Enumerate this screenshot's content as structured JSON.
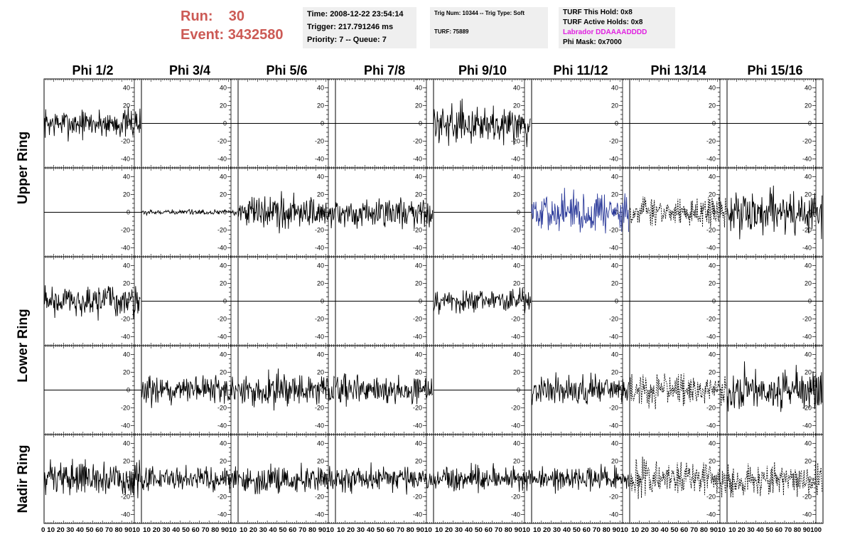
{
  "header": {
    "run_label": "Run:",
    "run_value": "30",
    "event_label": "Event:",
    "event_value": "3432580",
    "time": "Time: 2008-12-22 23:54:14",
    "trigger": "Trigger: 217.791246 ms",
    "priority": "Priority: 7 -- Queue: 7",
    "trig_num": "Trig Num: 10344 -- Trig Type: Soft",
    "turf": "TURF: 75889",
    "turf_hold": "TURF This Hold: 0x8",
    "turf_active": "TURF Active Holds: 0x8",
    "labrador": "Labrador DDAAAADDDD",
    "phi_mask": "Phi Mask: 0x7000",
    "labrador_color": "#e020e0",
    "run_color": "#cc5a55"
  },
  "chart_data": {
    "type": "line",
    "columns": [
      "Phi 1/2",
      "Phi 3/4",
      "Phi 5/6",
      "Phi 7/8",
      "Phi 9/10",
      "Phi 11/12",
      "Phi 13/14",
      "Phi 15/16"
    ],
    "row_labels": [
      "Upper Ring",
      "Lower Ring",
      "Nadir Ring"
    ],
    "xlim": [
      0,
      100
    ],
    "ylim": [
      -50,
      50
    ],
    "x_ticks": [
      0,
      10,
      20,
      30,
      40,
      50,
      60,
      70,
      80,
      90,
      100
    ],
    "y_ticks": [
      -40,
      -20,
      0,
      20,
      40
    ],
    "x_tick_labels": [
      "0 10 20 30 40 50 60 70 80 9010",
      "10 20 30 40 50 60 70 80 9010",
      "10 20 30 40 50 60 70 80 9010",
      "10 20 30 40 50 60 70 80 9010",
      "10 20 30 40 50 60 70 80 9010",
      "10 20 30 40 50 60 70 80 9010",
      "10 20 30 40 50 60 70 80 9010",
      "10 20 30 40 50 60 70 80 90100"
    ],
    "colors": {
      "normal": "#000000",
      "highlight": "#2b3a9a"
    },
    "panels": [
      [
        {
          "amp": 24,
          "style": "solid"
        },
        {
          "amp": 0,
          "style": "flat"
        },
        {
          "amp": 0,
          "style": "flat"
        },
        {
          "amp": 0,
          "style": "flat"
        },
        {
          "amp": 30,
          "style": "solid"
        },
        {
          "amp": 0,
          "style": "flat"
        },
        {
          "amp": 0,
          "style": "flat"
        },
        {
          "amp": 0,
          "style": "flat"
        }
      ],
      [
        {
          "amp": 0,
          "style": "flat"
        },
        {
          "amp": 4,
          "style": "solid"
        },
        {
          "amp": 28,
          "style": "solid"
        },
        {
          "amp": 24,
          "style": "solid"
        },
        {
          "amp": 0,
          "style": "flat"
        },
        {
          "amp": 32,
          "style": "blue"
        },
        {
          "amp": 26,
          "style": "dotted"
        },
        {
          "amp": 36,
          "style": "solid"
        }
      ],
      [
        {
          "amp": 26,
          "style": "solid"
        },
        {
          "amp": 0,
          "style": "flat"
        },
        {
          "amp": 0,
          "style": "flat"
        },
        {
          "amp": 0,
          "style": "flat"
        },
        {
          "amp": 20,
          "style": "solid"
        },
        {
          "amp": 0,
          "style": "flat"
        },
        {
          "amp": 0,
          "style": "flat"
        },
        {
          "amp": 0,
          "style": "flat"
        }
      ],
      [
        {
          "amp": 0,
          "style": "flat"
        },
        {
          "amp": 24,
          "style": "solid"
        },
        {
          "amp": 26,
          "style": "solid"
        },
        {
          "amp": 24,
          "style": "solid"
        },
        {
          "amp": 0,
          "style": "flat"
        },
        {
          "amp": 24,
          "style": "solid"
        },
        {
          "amp": 26,
          "style": "dotted"
        },
        {
          "amp": 34,
          "style": "solid"
        }
      ],
      [
        {
          "amp": 28,
          "style": "solid"
        },
        {
          "amp": 20,
          "style": "solid"
        },
        {
          "amp": 24,
          "style": "solid"
        },
        {
          "amp": 22,
          "style": "solid"
        },
        {
          "amp": 20,
          "style": "solid"
        },
        {
          "amp": 20,
          "style": "solid"
        },
        {
          "amp": 28,
          "style": "dotted"
        },
        {
          "amp": 26,
          "style": "dotted"
        }
      ]
    ]
  }
}
